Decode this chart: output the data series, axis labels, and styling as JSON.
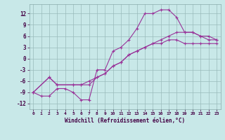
{
  "xlabel": "Windchill (Refroidissement éolien,°C)",
  "bg_color": "#c8e8e8",
  "line_color": "#993399",
  "grid_color": "#99bbbb",
  "xlim": [
    -0.5,
    23.5
  ],
  "ylim": [
    -13.5,
    14.5
  ],
  "xticks": [
    0,
    1,
    2,
    3,
    4,
    5,
    6,
    7,
    8,
    9,
    10,
    11,
    12,
    13,
    14,
    15,
    16,
    17,
    18,
    19,
    20,
    21,
    22,
    23
  ],
  "yticks": [
    -12,
    -9,
    -6,
    -3,
    0,
    3,
    6,
    9,
    12
  ],
  "line1_x": [
    0,
    1,
    2,
    3,
    4,
    5,
    6,
    7,
    8,
    9,
    10,
    11,
    12,
    13,
    14,
    15,
    16,
    17,
    18,
    19,
    20,
    21,
    22,
    23
  ],
  "line1_y": [
    -9,
    -10,
    -10,
    -8,
    -8,
    -9,
    -11,
    -11,
    -3,
    -3,
    2,
    3,
    5,
    8,
    12,
    12,
    13,
    13,
    11,
    7,
    7,
    6,
    5,
    5
  ],
  "line2_x": [
    0,
    2,
    3,
    5,
    6,
    7,
    8,
    9,
    10,
    11,
    12,
    13,
    14,
    15,
    16,
    17,
    18,
    19,
    20,
    21,
    22,
    23
  ],
  "line2_y": [
    -9,
    -5,
    -7,
    -7,
    -7,
    -6,
    -5,
    -4,
    -2,
    -1,
    1,
    2,
    3,
    4,
    5,
    6,
    7,
    7,
    7,
    6,
    6,
    5
  ],
  "line3_x": [
    0,
    2,
    3,
    5,
    6,
    7,
    8,
    9,
    10,
    11,
    12,
    13,
    14,
    15,
    16,
    17,
    18,
    19,
    20,
    21,
    22,
    23
  ],
  "line3_y": [
    -9,
    -5,
    -7,
    -7,
    -7,
    -7,
    -5,
    -4,
    -2,
    -1,
    1,
    2,
    3,
    4,
    4,
    5,
    5,
    4,
    4,
    4,
    4,
    4
  ]
}
